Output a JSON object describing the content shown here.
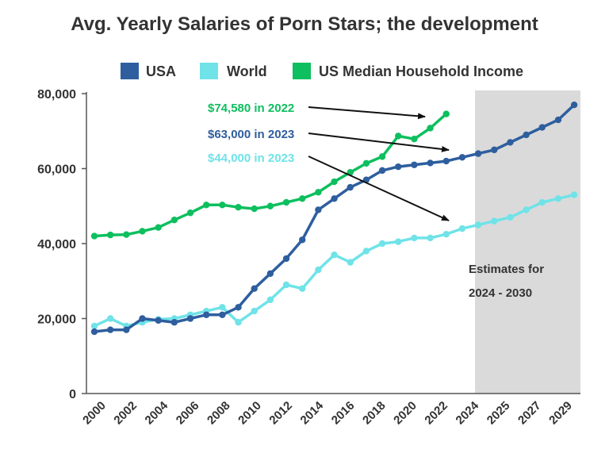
{
  "chart_data": {
    "type": "line",
    "title": "Avg. Yearly Salaries of Porn Stars; the development",
    "xlabel": "",
    "ylabel": "",
    "ylim": [
      0,
      80000
    ],
    "grid": false,
    "legend_position": "top",
    "y_ticks": [
      0,
      20000,
      40000,
      60000,
      80000
    ],
    "y_tick_labels": [
      "0",
      "20,000",
      "40,000",
      "60,000",
      "80,000"
    ],
    "x_tick_labels": [
      "2000",
      "2002",
      "2004",
      "2006",
      "2008",
      "2010",
      "2012",
      "2014",
      "2016",
      "2018",
      "2020",
      "2022",
      "2024",
      "2025",
      "2027",
      "2029"
    ],
    "series": [
      {
        "name": "USA",
        "color": "#2E5E9E",
        "x": [
          2000,
          2001,
          2002,
          2003,
          2004,
          2005,
          2006,
          2007,
          2008,
          2009,
          2010,
          2011,
          2012,
          2013,
          2014,
          2015,
          2016,
          2017,
          2018,
          2019,
          2020,
          2021,
          2022,
          2023,
          2024,
          2025,
          2026,
          2027,
          2028,
          2029,
          2030
        ],
        "values": [
          16500,
          17000,
          17000,
          20000,
          19500,
          19000,
          20000,
          21000,
          21000,
          23000,
          28000,
          32000,
          36000,
          41000,
          49000,
          52000,
          55000,
          57000,
          59500,
          60500,
          61000,
          61500,
          62000,
          63000,
          64000,
          65000,
          67000,
          69000,
          71000,
          73000,
          77000
        ]
      },
      {
        "name": "World",
        "color": "#6FE3E8",
        "x": [
          2000,
          2001,
          2002,
          2003,
          2004,
          2005,
          2006,
          2007,
          2008,
          2009,
          2010,
          2011,
          2012,
          2013,
          2014,
          2015,
          2016,
          2017,
          2018,
          2019,
          2020,
          2021,
          2022,
          2023,
          2024,
          2025,
          2026,
          2027,
          2028,
          2029,
          2030
        ],
        "values": [
          18000,
          20000,
          18000,
          19000,
          19800,
          20000,
          21000,
          22000,
          23000,
          19000,
          22000,
          25000,
          29000,
          28000,
          33000,
          37000,
          35000,
          38000,
          40000,
          40500,
          41500,
          41500,
          42500,
          44000,
          45000,
          46000,
          47000,
          49000,
          51000,
          52000,
          53000
        ]
      },
      {
        "name": "US Median Household Income",
        "color": "#0DBF5E",
        "x": [
          2000,
          2001,
          2002,
          2003,
          2004,
          2005,
          2006,
          2007,
          2008,
          2009,
          2010,
          2011,
          2012,
          2013,
          2014,
          2015,
          2016,
          2017,
          2018,
          2019,
          2020,
          2021,
          2022
        ],
        "values": [
          42000,
          42300,
          42400,
          43300,
          44300,
          46300,
          48200,
          50300,
          50300,
          49700,
          49300,
          50000,
          51000,
          52000,
          53700,
          56500,
          59000,
          61400,
          63200,
          68700,
          67900,
          70800,
          74580
        ]
      }
    ],
    "annotations": [
      {
        "text": "$74,580 in 2022",
        "color": "#0DBF5E",
        "target_x": 2022,
        "target_y": 74580
      },
      {
        "text": "$63,000 in 2023",
        "color": "#2E5E9E",
        "target_x": 2023,
        "target_y": 63000
      },
      {
        "text": "$44,000 in 2023",
        "color": "#6FE3E8",
        "target_x": 2023,
        "target_y": 44000
      }
    ],
    "shaded_region": {
      "x_start": 2023.8,
      "x_end": 2030.5,
      "color": "#DADADA",
      "label_line1": "Estimates for",
      "label_line2": "2024 - 2030"
    },
    "axis_color": "#555555",
    "text_color": "#333333"
  }
}
